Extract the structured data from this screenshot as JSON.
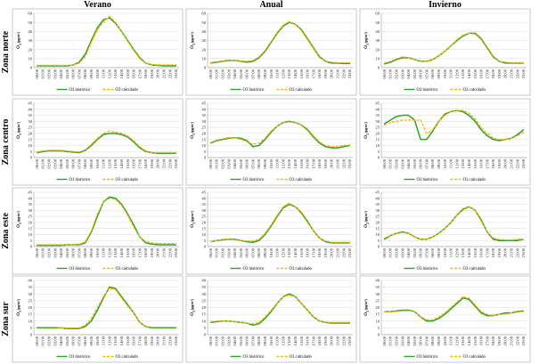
{
  "figure": {
    "columns": [
      "Verano",
      "Anual",
      "Invierno"
    ],
    "rows": [
      "Zona norte",
      "Zona centro",
      "Zona este",
      "Zona sur"
    ],
    "ylabel": "O",
    "ylabel_sub": "3",
    "ylabel_unit": "(µg/m³)",
    "x_ticks": [
      "00:00",
      "01:00",
      "02:00",
      "03:00",
      "04:00",
      "05:00",
      "06:00",
      "07:00",
      "08:00",
      "09:00",
      "10:00",
      "11:00",
      "12:00",
      "13:00",
      "14:00",
      "15:00",
      "16:00",
      "17:00",
      "18:00",
      "19:00",
      "20:00",
      "21:00",
      "22:00",
      "23:00"
    ],
    "legend": [
      "O3 histórico",
      "O3 calculado"
    ],
    "colors": {
      "historico": "#2ca02c",
      "calculado": "#f2b705"
    }
  },
  "chart_data": [
    {
      "type": "line",
      "row": "Zona norte",
      "column": "Verano",
      "ylim": [
        0,
        60
      ],
      "yticks": [
        0,
        10,
        20,
        30,
        40,
        50,
        60
      ],
      "series": [
        {
          "name": "O3 histórico",
          "values": [
            2,
            2,
            2,
            2,
            2,
            2,
            3,
            6,
            15,
            30,
            44,
            53,
            55,
            49,
            40,
            30,
            20,
            11,
            5,
            3,
            2.5,
            2,
            2,
            2
          ]
        },
        {
          "name": "O3 calculado",
          "values": [
            2.5,
            2.5,
            2.5,
            2.5,
            2.5,
            2.5,
            3,
            5,
            12,
            28,
            42,
            50,
            57,
            50,
            40,
            29,
            19,
            10,
            5,
            3.5,
            3,
            3,
            3,
            3
          ]
        }
      ]
    },
    {
      "type": "line",
      "row": "Zona norte",
      "column": "Anual",
      "ylim": [
        0,
        60
      ],
      "yticks": [
        0,
        10,
        20,
        30,
        40,
        50,
        60
      ],
      "series": [
        {
          "name": "O3 histórico",
          "values": [
            5,
            6,
            7,
            8,
            8,
            7,
            6,
            7,
            11,
            18,
            28,
            38,
            46,
            50,
            48,
            42,
            32,
            22,
            12,
            7,
            5,
            5,
            4.5,
            4.5
          ]
        },
        {
          "name": "O3 calculado",
          "values": [
            5.5,
            6.5,
            7.5,
            8.5,
            8,
            7.5,
            7,
            8,
            12,
            19,
            29,
            39,
            47,
            51,
            48,
            41,
            31,
            21,
            11,
            7,
            6,
            5.5,
            5.5,
            5.5
          ]
        }
      ]
    },
    {
      "type": "line",
      "row": "Zona norte",
      "column": "Invierno",
      "ylim": [
        0,
        60
      ],
      "yticks": [
        0,
        10,
        20,
        30,
        40,
        50,
        60
      ],
      "series": [
        {
          "name": "O3 histórico",
          "values": [
            4,
            6,
            9,
            11,
            11,
            9,
            7,
            7,
            9,
            13,
            18,
            24,
            30,
            35,
            38,
            38,
            32,
            22,
            12,
            7,
            5,
            5,
            5,
            5
          ]
        },
        {
          "name": "O3 calculado",
          "values": [
            5,
            7,
            10,
            12,
            11,
            9,
            7,
            7,
            9,
            13,
            18,
            24,
            31,
            36,
            38,
            37,
            31,
            21,
            11,
            7,
            6,
            5.5,
            5.5,
            5.5
          ]
        }
      ]
    },
    {
      "type": "line",
      "row": "Zona centro",
      "column": "Verano",
      "ylim": [
        0,
        45
      ],
      "yticks": [
        0,
        5,
        10,
        15,
        20,
        25,
        30,
        35,
        40,
        45
      ],
      "series": [
        {
          "name": "O3 histórico",
          "values": [
            4,
            5,
            5.5,
            5.5,
            5.5,
            5,
            4.5,
            4,
            6,
            10,
            15,
            19,
            20,
            20,
            19,
            17,
            13,
            8,
            5,
            4,
            3.5,
            3.5,
            3.5,
            3.5
          ]
        },
        {
          "name": "O3 calculado",
          "values": [
            4.5,
            5.5,
            6,
            6,
            6,
            5.5,
            5,
            4.5,
            6.5,
            11,
            16,
            20,
            22,
            21,
            20,
            18,
            14,
            9,
            5.5,
            4,
            4,
            4,
            4,
            4
          ]
        }
      ]
    },
    {
      "type": "line",
      "row": "Zona centro",
      "column": "Anual",
      "ylim": [
        0,
        45
      ],
      "yticks": [
        0,
        5,
        10,
        15,
        20,
        25,
        30,
        35,
        40,
        45
      ],
      "series": [
        {
          "name": "O3 histórico",
          "values": [
            12,
            14,
            15,
            16,
            16.5,
            16,
            14,
            9,
            10,
            15,
            21,
            26,
            29,
            30,
            29,
            27,
            23,
            17,
            12,
            9,
            8,
            8,
            9,
            10
          ]
        },
        {
          "name": "O3 calculado",
          "values": [
            12.5,
            14.5,
            15.5,
            16.5,
            16.5,
            15,
            13,
            11,
            12,
            16,
            22,
            26,
            29,
            29.5,
            29,
            27,
            24,
            18,
            13,
            10,
            9,
            9,
            10,
            10.5
          ]
        }
      ]
    },
    {
      "type": "line",
      "row": "Zona centro",
      "column": "Invierno",
      "ylim": [
        0,
        45
      ],
      "yticks": [
        0,
        5,
        10,
        15,
        20,
        25,
        30,
        35,
        40,
        45
      ],
      "series": [
        {
          "name": "O3 histórico",
          "values": [
            28,
            31,
            34,
            35,
            35,
            31,
            15,
            15,
            22,
            30,
            36,
            38,
            39,
            38,
            35,
            30,
            23,
            18,
            15,
            14,
            15,
            16,
            19,
            23
          ]
        },
        {
          "name": "O3 calculado",
          "values": [
            27,
            29,
            30,
            31,
            31,
            31,
            31,
            20,
            23,
            30,
            35,
            38,
            39,
            39,
            37,
            32,
            25,
            20,
            16,
            15,
            15,
            16,
            18,
            21
          ]
        }
      ]
    },
    {
      "type": "line",
      "row": "Zona este",
      "column": "Verano",
      "ylim": [
        0,
        45
      ],
      "yticks": [
        0,
        5,
        10,
        15,
        20,
        25,
        30,
        35,
        40,
        45
      ],
      "series": [
        {
          "name": "O3 histórico",
          "values": [
            1,
            1,
            1,
            1,
            1,
            1.5,
            1.5,
            1.5,
            3,
            12,
            25,
            37,
            41,
            40,
            35,
            27,
            18,
            8,
            3,
            2,
            1.5,
            1.5,
            1.5,
            1.5
          ]
        },
        {
          "name": "O3 calculado",
          "values": [
            1.5,
            1.5,
            1.5,
            1.5,
            1.5,
            1.5,
            1.5,
            2,
            4,
            13,
            27,
            37,
            40,
            39,
            34,
            26,
            16,
            8,
            4,
            3,
            2.5,
            2.5,
            2.5,
            2.5
          ]
        }
      ]
    },
    {
      "type": "line",
      "row": "Zona este",
      "column": "Anual",
      "ylim": [
        0,
        45
      ],
      "yticks": [
        0,
        5,
        10,
        15,
        20,
        25,
        30,
        35,
        40,
        45
      ],
      "series": [
        {
          "name": "O3 histórico",
          "values": [
            4,
            5,
            5.5,
            6,
            6,
            5,
            4,
            3.5,
            5,
            10,
            17,
            25,
            32,
            35,
            33,
            28,
            21,
            13,
            7,
            4,
            3,
            3,
            3,
            3
          ]
        },
        {
          "name": "O3 calculado",
          "values": [
            4,
            5,
            6,
            6,
            5.5,
            5,
            4.5,
            4.5,
            6,
            11,
            18,
            26,
            33,
            36,
            33,
            27,
            20,
            13,
            7,
            4.5,
            3.5,
            3.5,
            3.5,
            3.5
          ]
        }
      ]
    },
    {
      "type": "line",
      "row": "Zona este",
      "column": "Invierno",
      "ylim": [
        0,
        45
      ],
      "yticks": [
        0,
        5,
        10,
        15,
        20,
        25,
        30,
        35,
        40,
        45
      ],
      "series": [
        {
          "name": "O3 histórico",
          "values": [
            6,
            9,
            11,
            12,
            11,
            8,
            6,
            6,
            8,
            11,
            15,
            20,
            26,
            31,
            33,
            30,
            22,
            12,
            6,
            5,
            5,
            5,
            5,
            6
          ]
        },
        {
          "name": "O3 calculado",
          "values": [
            7,
            9,
            11,
            11.5,
            11,
            8,
            6,
            6,
            8,
            11,
            15,
            20,
            26,
            30,
            33,
            30,
            21,
            12,
            7,
            6,
            5.5,
            5.5,
            6,
            6
          ]
        }
      ]
    },
    {
      "type": "line",
      "row": "Zona sur",
      "column": "Verano",
      "ylim": [
        0,
        40
      ],
      "yticks": [
        0,
        5,
        10,
        15,
        20,
        25,
        30,
        35,
        40
      ],
      "series": [
        {
          "name": "O3 histórico",
          "values": [
            5,
            5,
            5,
            5,
            5,
            4.5,
            4.5,
            4.5,
            6,
            10,
            18,
            27,
            35,
            34,
            28,
            22,
            16,
            9,
            6,
            5,
            5,
            5,
            5,
            5
          ]
        },
        {
          "name": "O3 calculado",
          "values": [
            5.5,
            5.5,
            5.5,
            5.5,
            5,
            5,
            5,
            5,
            7,
            12,
            20,
            28,
            34,
            33,
            27,
            21,
            16,
            9,
            6,
            5.5,
            5.5,
            5.5,
            5.5,
            5.5
          ]
        }
      ]
    },
    {
      "type": "line",
      "row": "Zona sur",
      "column": "Anual",
      "ylim": [
        0,
        40
      ],
      "yticks": [
        0,
        5,
        10,
        15,
        20,
        25,
        30,
        35,
        40
      ],
      "series": [
        {
          "name": "O3 histórico",
          "values": [
            9,
            9.5,
            10,
            10,
            9.5,
            9,
            8.5,
            7,
            8,
            12,
            17,
            23,
            28,
            30,
            28,
            23,
            18,
            13,
            10,
            9,
            8.5,
            8.5,
            8.5,
            8.5
          ]
        },
        {
          "name": "O3 calculado",
          "values": [
            9.5,
            10,
            10,
            10,
            9.5,
            9,
            8.5,
            8,
            9,
            13,
            18,
            23,
            28,
            29,
            28,
            23,
            18,
            13,
            10,
            9,
            9,
            9,
            9,
            9
          ]
        }
      ]
    },
    {
      "type": "line",
      "row": "Zona sur",
      "column": "Invierno",
      "ylim": [
        0,
        40
      ],
      "yticks": [
        0,
        5,
        10,
        15,
        20,
        25,
        30,
        35,
        40
      ],
      "series": [
        {
          "name": "O3 histórico",
          "values": [
            17,
            17,
            17.5,
            18,
            18,
            17,
            13,
            10,
            10,
            12,
            15,
            19,
            23,
            27,
            26,
            21,
            16,
            14,
            14,
            15,
            16,
            16,
            17,
            17.5
          ]
        },
        {
          "name": "O3 calculado",
          "values": [
            17,
            17,
            17,
            17.5,
            17.5,
            17,
            13,
            11,
            11,
            13,
            16,
            20,
            24,
            28,
            27,
            22,
            17,
            15,
            14,
            15,
            15,
            16,
            16.5,
            17
          ]
        }
      ]
    }
  ]
}
